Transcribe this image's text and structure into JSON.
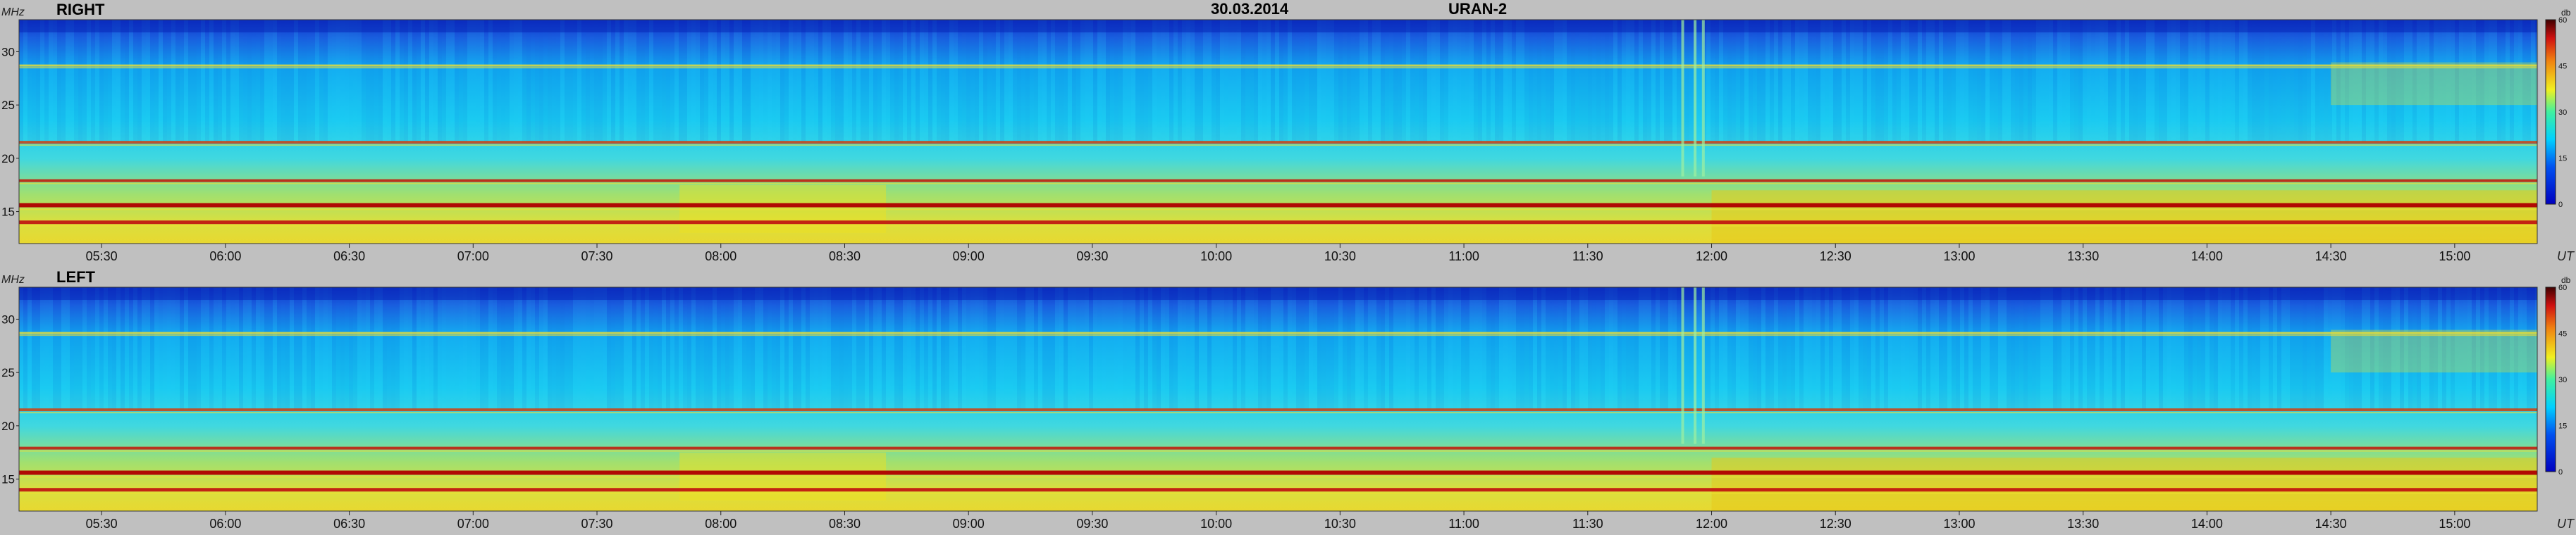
{
  "header": {
    "date": "30.03.2014",
    "instrument": "URAN-2"
  },
  "chart_data": [
    {
      "type": "heatmap",
      "panel": "RIGHT",
      "ylabel": "MHz",
      "xlabel": "UT",
      "x_range_ut": [
        "05:10",
        "15:20"
      ],
      "y_range_mhz": [
        12,
        33
      ],
      "yticks": [
        15,
        20,
        25,
        30
      ],
      "xticks": [
        "05:30",
        "06:00",
        "06:30",
        "07:00",
        "07:30",
        "08:00",
        "08:30",
        "09:00",
        "09:30",
        "10:00",
        "10:30",
        "11:00",
        "11:30",
        "12:00",
        "12:30",
        "13:00",
        "13:30",
        "14:00",
        "14:30",
        "15:00"
      ],
      "colorbar": {
        "unit": "db",
        "range": [
          0,
          60
        ],
        "ticks": [
          0,
          15,
          30,
          45,
          60
        ]
      },
      "bands_mhz": [
        14.0,
        15.6,
        17.9,
        21.5,
        28.7
      ],
      "interference_spikes_ut": [
        "11:53",
        "11:56",
        "11:58"
      ]
    },
    {
      "type": "heatmap",
      "panel": "LEFT",
      "ylabel": "MHz",
      "xlabel": "UT",
      "x_range_ut": [
        "05:10",
        "15:20"
      ],
      "y_range_mhz": [
        12,
        33
      ],
      "yticks": [
        15,
        20,
        25,
        30
      ],
      "xticks": [
        "05:30",
        "06:00",
        "06:30",
        "07:00",
        "07:30",
        "08:00",
        "08:30",
        "09:00",
        "09:30",
        "10:00",
        "10:30",
        "11:00",
        "11:30",
        "12:00",
        "12:30",
        "13:00",
        "13:30",
        "14:00",
        "14:30",
        "15:00"
      ],
      "colorbar": {
        "unit": "db",
        "range": [
          0,
          60
        ],
        "ticks": [
          0,
          15,
          30,
          45,
          60
        ]
      },
      "bands_mhz": [
        14.0,
        15.6,
        17.9,
        21.5,
        28.7
      ],
      "interference_spikes_ut": [
        "11:53",
        "11:56",
        "11:58"
      ]
    }
  ],
  "colors": {
    "low": "#1020c0",
    "mid": "#00d8ff",
    "high": "#f0e020",
    "peak": "#c00000"
  }
}
